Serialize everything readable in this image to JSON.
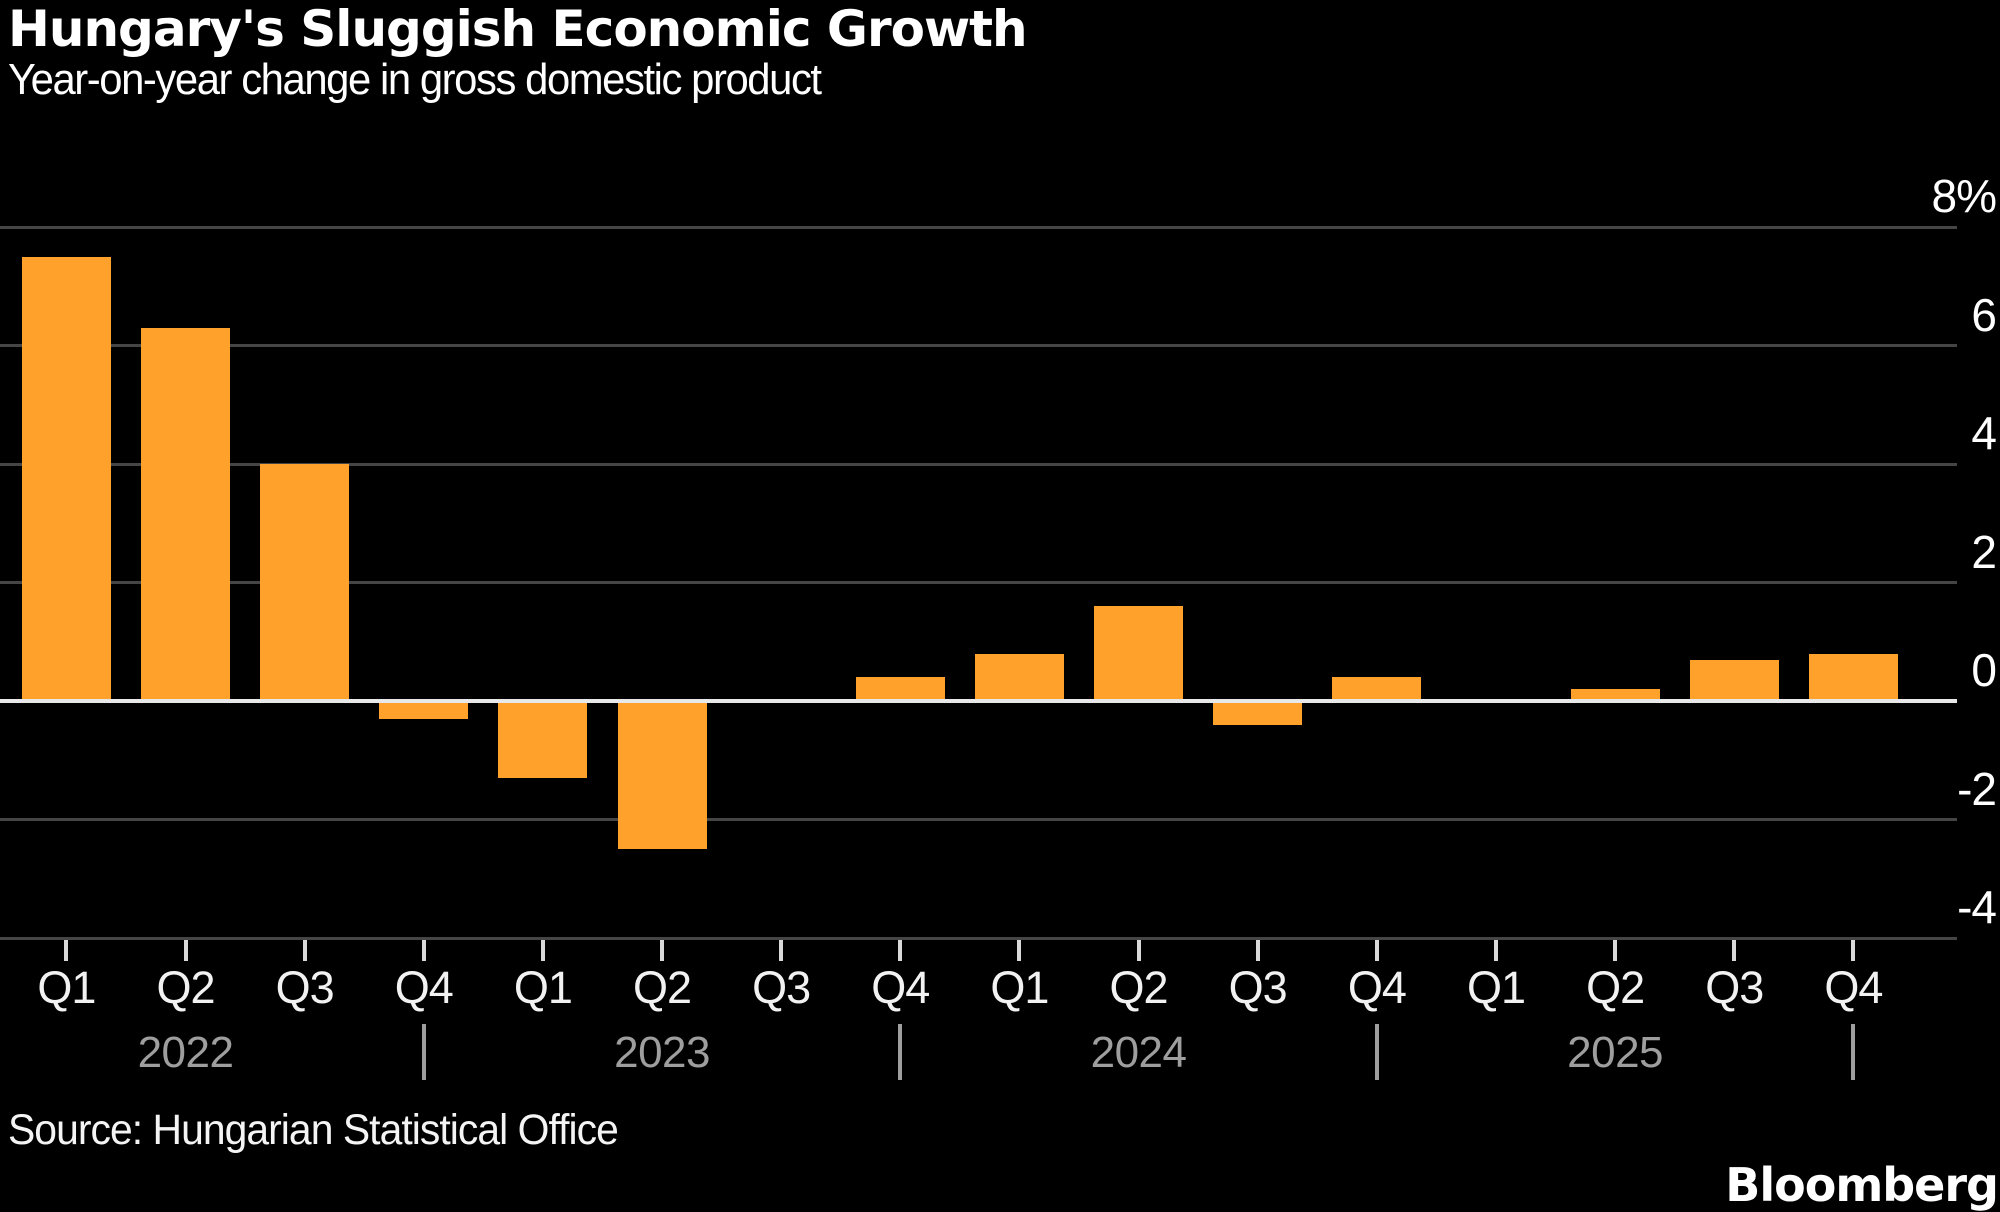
{
  "header": {
    "title": "Hungary's Sluggish Economic Growth",
    "subtitle": "Year-on-year change in gross domestic product"
  },
  "footer": {
    "source": "Source: Hungarian Statistical Office",
    "brand": "Bloomberg"
  },
  "colors": {
    "background": "#000000",
    "bar": "#ffa12b",
    "grid_line": "#454545",
    "zero_line": "#e8e8e8",
    "tick_mark": "#d9d9d9",
    "quarter_label": "#f2f2f2",
    "year_label": "#9e9e9e",
    "axis_label": "#ffffff"
  },
  "chart_data": {
    "type": "bar",
    "title": "Hungary's Sluggish Economic Growth",
    "subtitle": "Year-on-year change in gross domestic product",
    "xlabel": "",
    "ylabel": "",
    "unit": "percent, year-on-year change of GDP",
    "grid": true,
    "legend": false,
    "ylim": [
      -4.7,
      8.9
    ],
    "y_ticks": [
      {
        "label": "8%",
        "value": 8
      },
      {
        "label": "6",
        "value": 6
      },
      {
        "label": "4",
        "value": 4
      },
      {
        "label": "2",
        "value": 2
      },
      {
        "label": "0",
        "value": 0
      },
      {
        "label": "-2",
        "value": -2
      },
      {
        "label": "-4",
        "value": -4
      }
    ],
    "zero_baseline": 0,
    "categories": [
      "Q1 2022",
      "Q2 2022",
      "Q3 2022",
      "Q4 2022",
      "Q1 2023",
      "Q2 2023",
      "Q3 2023",
      "Q4 2023",
      "Q1 2024",
      "Q2 2024",
      "Q3 2024",
      "Q4 2024",
      "Q1 2025",
      "Q2 2025",
      "Q3 2025",
      "Q4 2025"
    ],
    "quarters": [
      "Q1",
      "Q2",
      "Q3",
      "Q4",
      "Q1",
      "Q2",
      "Q3",
      "Q4",
      "Q1",
      "Q2",
      "Q3",
      "Q4",
      "Q1",
      "Q2",
      "Q3",
      "Q4"
    ],
    "values": [
      7.5,
      6.3,
      4.0,
      -0.3,
      -1.3,
      -2.5,
      0.0,
      0.4,
      0.8,
      1.6,
      -0.4,
      0.4,
      0.0,
      0.2,
      0.7,
      0.8
    ],
    "years": [
      {
        "label": "2022",
        "label_quarter_index": 1,
        "separator_quarter_index": 3
      },
      {
        "label": "2023",
        "label_quarter_index": 5,
        "separator_quarter_index": 7
      },
      {
        "label": "2024",
        "label_quarter_index": 9,
        "separator_quarter_index": 11
      },
      {
        "label": "2025",
        "label_quarter_index": 13,
        "separator_quarter_index": 15
      }
    ]
  }
}
